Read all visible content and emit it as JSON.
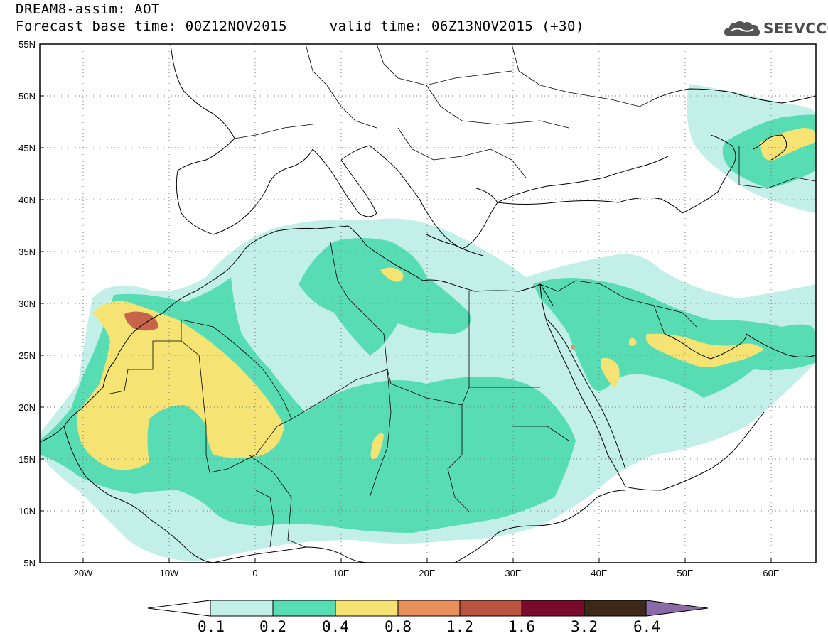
{
  "header": {
    "line1": "DREAM8-assim: AOT",
    "line2": "Forecast base time: 00Z12NOV2015     valid time: 06Z13NOV2015 (+30)"
  },
  "logo": {
    "text": "SEEVCCC",
    "icon": "cloud-icon"
  },
  "map": {
    "lon_range": [
      -25,
      65
    ],
    "lat_range": [
      5,
      55
    ],
    "x_ticks": [
      "20W",
      "10W",
      "0",
      "10E",
      "20E",
      "30E",
      "40E",
      "50E",
      "60E"
    ],
    "y_ticks": [
      "55N",
      "50N",
      "45N",
      "40N",
      "35N",
      "30N",
      "25N",
      "20N",
      "15N",
      "10N",
      "5N"
    ],
    "grid": "dotted"
  },
  "colorbar": {
    "labels": [
      "0.1",
      "0.2",
      "0.4",
      "0.8",
      "1.2",
      "1.6",
      "3.2",
      "6.4"
    ],
    "colors": [
      "#c2f0e8",
      "#58dcb4",
      "#f5e474",
      "#e8905c",
      "#b85440",
      "#7a0a2c",
      "#3d2818",
      "#8a6aa8"
    ]
  }
}
